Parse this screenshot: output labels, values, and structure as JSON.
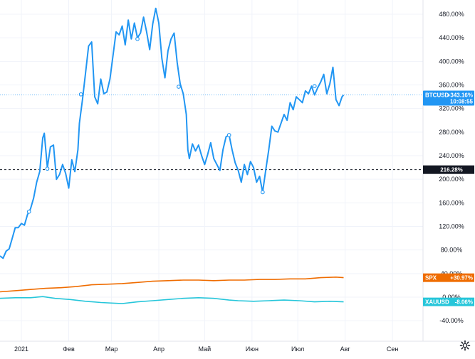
{
  "chart_data": {
    "type": "line",
    "y_unit": "%",
    "ylim": [
      -50,
      500
    ],
    "y_ticks": [
      "480.00%",
      "440.00%",
      "400.00%",
      "360.00%",
      "320.00%",
      "280.00%",
      "240.00%",
      "200.00%",
      "160.00%",
      "120.00%",
      "80.00%",
      "40.00%",
      "0.00%",
      "-40.00%"
    ],
    "y_tick_values": [
      480,
      440,
      400,
      360,
      320,
      280,
      240,
      200,
      160,
      120,
      80,
      40,
      0,
      -40
    ],
    "x_ticks": [
      "2021",
      "Фев",
      "Мар",
      "Апр",
      "Май",
      "Июн",
      "Июл",
      "Авг",
      "Сен"
    ],
    "x_tick_days": [
      8,
      39,
      67,
      98,
      128,
      159,
      189,
      220,
      251
    ],
    "x_range_days": [
      -6,
      271
    ],
    "reference_line": {
      "value": 216.28,
      "label": "216.28%",
      "color": "#131722"
    },
    "series": [
      {
        "name": "BTCUSD",
        "color": "#2196f3",
        "last_label": "+343.16%",
        "time_label": "10:08:55",
        "crosshair_value": 343.16,
        "markers": [
          [
            13,
            145
          ],
          [
            25,
            218
          ],
          [
            47,
            344
          ],
          [
            84,
            438
          ],
          [
            111,
            357
          ],
          [
            144,
            275
          ],
          [
            166,
            178
          ],
          [
            200,
            358
          ]
        ],
        "points": [
          [
            -6,
            70
          ],
          [
            -4,
            66
          ],
          [
            -2,
            78
          ],
          [
            0,
            82
          ],
          [
            2,
            100
          ],
          [
            4,
            118
          ],
          [
            6,
            118
          ],
          [
            8,
            125
          ],
          [
            10,
            122
          ],
          [
            12,
            140
          ],
          [
            14,
            150
          ],
          [
            16,
            168
          ],
          [
            18,
            195
          ],
          [
            20,
            213
          ],
          [
            22,
            270
          ],
          [
            23,
            278
          ],
          [
            25,
            220
          ],
          [
            27,
            255
          ],
          [
            29,
            258
          ],
          [
            31,
            200
          ],
          [
            33,
            208
          ],
          [
            35,
            225
          ],
          [
            37,
            210
          ],
          [
            39,
            185
          ],
          [
            41,
            233
          ],
          [
            43,
            213
          ],
          [
            45,
            250
          ],
          [
            46,
            295
          ],
          [
            48,
            335
          ],
          [
            50,
            380
          ],
          [
            52,
            426
          ],
          [
            54,
            433
          ],
          [
            56,
            340
          ],
          [
            58,
            328
          ],
          [
            60,
            370
          ],
          [
            62,
            345
          ],
          [
            64,
            348
          ],
          [
            66,
            370
          ],
          [
            68,
            410
          ],
          [
            70,
            450
          ],
          [
            72,
            445
          ],
          [
            74,
            460
          ],
          [
            76,
            428
          ],
          [
            78,
            470
          ],
          [
            80,
            438
          ],
          [
            82,
            465
          ],
          [
            84,
            440
          ],
          [
            86,
            448
          ],
          [
            88,
            475
          ],
          [
            90,
            450
          ],
          [
            92,
            420
          ],
          [
            94,
            463
          ],
          [
            96,
            490
          ],
          [
            98,
            465
          ],
          [
            100,
            405
          ],
          [
            102,
            372
          ],
          [
            104,
            418
          ],
          [
            106,
            438
          ],
          [
            108,
            448
          ],
          [
            110,
            398
          ],
          [
            112,
            362
          ],
          [
            114,
            345
          ],
          [
            116,
            310
          ],
          [
            117,
            250
          ],
          [
            118,
            235
          ],
          [
            120,
            260
          ],
          [
            122,
            248
          ],
          [
            124,
            258
          ],
          [
            126,
            240
          ],
          [
            128,
            225
          ],
          [
            130,
            242
          ],
          [
            132,
            262
          ],
          [
            134,
            235
          ],
          [
            136,
            225
          ],
          [
            138,
            215
          ],
          [
            140,
            250
          ],
          [
            142,
            272
          ],
          [
            144,
            275
          ],
          [
            146,
            250
          ],
          [
            148,
            228
          ],
          [
            150,
            215
          ],
          [
            152,
            195
          ],
          [
            154,
            225
          ],
          [
            156,
            208
          ],
          [
            158,
            230
          ],
          [
            160,
            220
          ],
          [
            162,
            195
          ],
          [
            164,
            205
          ],
          [
            166,
            178
          ],
          [
            168,
            215
          ],
          [
            170,
            250
          ],
          [
            172,
            290
          ],
          [
            174,
            282
          ],
          [
            176,
            280
          ],
          [
            178,
            295
          ],
          [
            180,
            310
          ],
          [
            182,
            300
          ],
          [
            184,
            330
          ],
          [
            186,
            318
          ],
          [
            188,
            340
          ],
          [
            190,
            335
          ],
          [
            192,
            330
          ],
          [
            194,
            350
          ],
          [
            196,
            345
          ],
          [
            198,
            358
          ],
          [
            200,
            343
          ],
          [
            202,
            355
          ],
          [
            204,
            365
          ],
          [
            206,
            378
          ],
          [
            208,
            345
          ],
          [
            210,
            362
          ],
          [
            212,
            390
          ],
          [
            214,
            335
          ],
          [
            216,
            325
          ],
          [
            218,
            340
          ],
          [
            219,
            343
          ]
        ]
      },
      {
        "name": "SPX",
        "color": "#ef6c00",
        "last_label": "+30.97%",
        "points": [
          [
            -6,
            9
          ],
          [
            4,
            11
          ],
          [
            14,
            13
          ],
          [
            24,
            15
          ],
          [
            34,
            16
          ],
          [
            44,
            18
          ],
          [
            54,
            21
          ],
          [
            64,
            22
          ],
          [
            74,
            23
          ],
          [
            84,
            25
          ],
          [
            94,
            27
          ],
          [
            104,
            28
          ],
          [
            114,
            29
          ],
          [
            124,
            29
          ],
          [
            134,
            28
          ],
          [
            144,
            29
          ],
          [
            154,
            29
          ],
          [
            164,
            30
          ],
          [
            174,
            30
          ],
          [
            184,
            31
          ],
          [
            194,
            31
          ],
          [
            204,
            33
          ],
          [
            214,
            34
          ],
          [
            219,
            33
          ]
        ]
      },
      {
        "name": "XAUUSD",
        "color": "#26c6da",
        "last_label": "-8.06%",
        "points": [
          [
            -6,
            -2
          ],
          [
            4,
            -1
          ],
          [
            14,
            -1
          ],
          [
            22,
            1
          ],
          [
            30,
            -2
          ],
          [
            40,
            -4
          ],
          [
            50,
            -7
          ],
          [
            60,
            -9
          ],
          [
            67,
            -10
          ],
          [
            74,
            -11
          ],
          [
            84,
            -8
          ],
          [
            94,
            -6
          ],
          [
            104,
            -4
          ],
          [
            114,
            -2
          ],
          [
            124,
            -1
          ],
          [
            134,
            -2
          ],
          [
            144,
            -5
          ],
          [
            150,
            -6
          ],
          [
            160,
            -7
          ],
          [
            170,
            -6
          ],
          [
            180,
            -5
          ],
          [
            190,
            -6
          ],
          [
            200,
            -8
          ],
          [
            210,
            -7
          ],
          [
            219,
            -8
          ]
        ]
      }
    ]
  },
  "ui": {
    "settings_icon": "gear-icon"
  }
}
